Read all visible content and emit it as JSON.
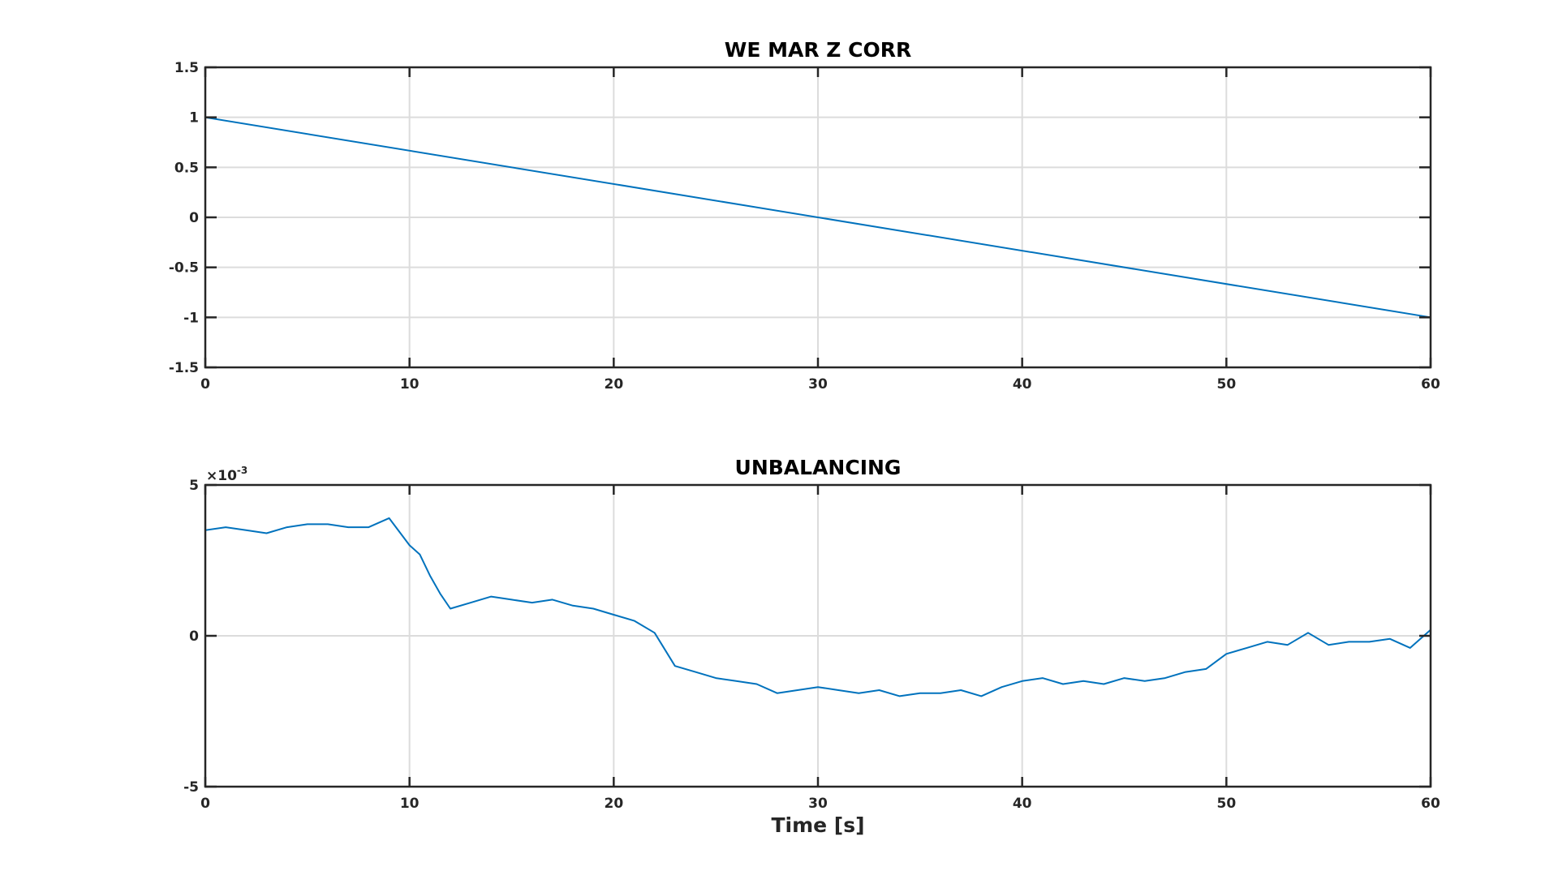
{
  "chart_data": [
    {
      "type": "line",
      "title": "WE MAR Z CORR",
      "xlabel": "",
      "ylabel": "",
      "xlim": [
        0,
        60
      ],
      "ylim": [
        -1.5,
        1.5
      ],
      "xticks": [
        "0",
        "10",
        "20",
        "30",
        "40",
        "50",
        "60"
      ],
      "yticks": [
        "1.5",
        "1",
        "0.5",
        "0",
        "-0.5",
        "-1",
        "-1.5"
      ],
      "grid": true,
      "color": "#0072BD",
      "x": [
        0,
        60
      ],
      "y": [
        1,
        -1
      ]
    },
    {
      "type": "line",
      "title": "UNBALANCING",
      "xlabel": "Time [s]",
      "ylabel": "",
      "xlim": [
        0,
        60
      ],
      "ylim": [
        -0.005,
        0.005
      ],
      "y_exponent_base": "×10",
      "y_exponent": "-3",
      "xticks": [
        "0",
        "10",
        "20",
        "30",
        "40",
        "50",
        "60"
      ],
      "yticks": [
        "5",
        "0",
        "-5"
      ],
      "grid": true,
      "color": "#0072BD",
      "x": [
        0,
        1,
        2,
        3,
        4,
        5,
        6,
        7,
        8,
        9,
        10,
        10.5,
        11,
        11.5,
        12,
        13,
        14,
        15,
        16,
        17,
        18,
        19,
        20,
        21,
        22,
        23,
        24,
        25,
        26,
        27,
        28,
        29,
        30,
        31,
        32,
        33,
        34,
        35,
        36,
        37,
        38,
        39,
        40,
        41,
        42,
        43,
        44,
        45,
        46,
        47,
        48,
        49,
        50,
        51,
        52,
        53,
        54,
        55,
        56,
        57,
        58,
        59,
        60
      ],
      "y": [
        0.0035,
        0.0036,
        0.0035,
        0.0034,
        0.0036,
        0.0037,
        0.0037,
        0.0036,
        0.0036,
        0.0039,
        0.003,
        0.0027,
        0.002,
        0.0014,
        0.0009,
        0.0011,
        0.0013,
        0.0012,
        0.0011,
        0.0012,
        0.001,
        0.0009,
        0.0007,
        0.0005,
        0.0001,
        -0.001,
        -0.0012,
        -0.0014,
        -0.0015,
        -0.0016,
        -0.0019,
        -0.0018,
        -0.0017,
        -0.0018,
        -0.0019,
        -0.0018,
        -0.002,
        -0.0019,
        -0.0019,
        -0.0018,
        -0.002,
        -0.0017,
        -0.0015,
        -0.0014,
        -0.0016,
        -0.0015,
        -0.0016,
        -0.0014,
        -0.0015,
        -0.0014,
        -0.0012,
        -0.0011,
        -0.0006,
        -0.0004,
        -0.0002,
        -0.0003,
        0.0001,
        -0.0003,
        -0.0002,
        -0.0002,
        -0.0001,
        -0.0004,
        0.0002
      ]
    }
  ]
}
